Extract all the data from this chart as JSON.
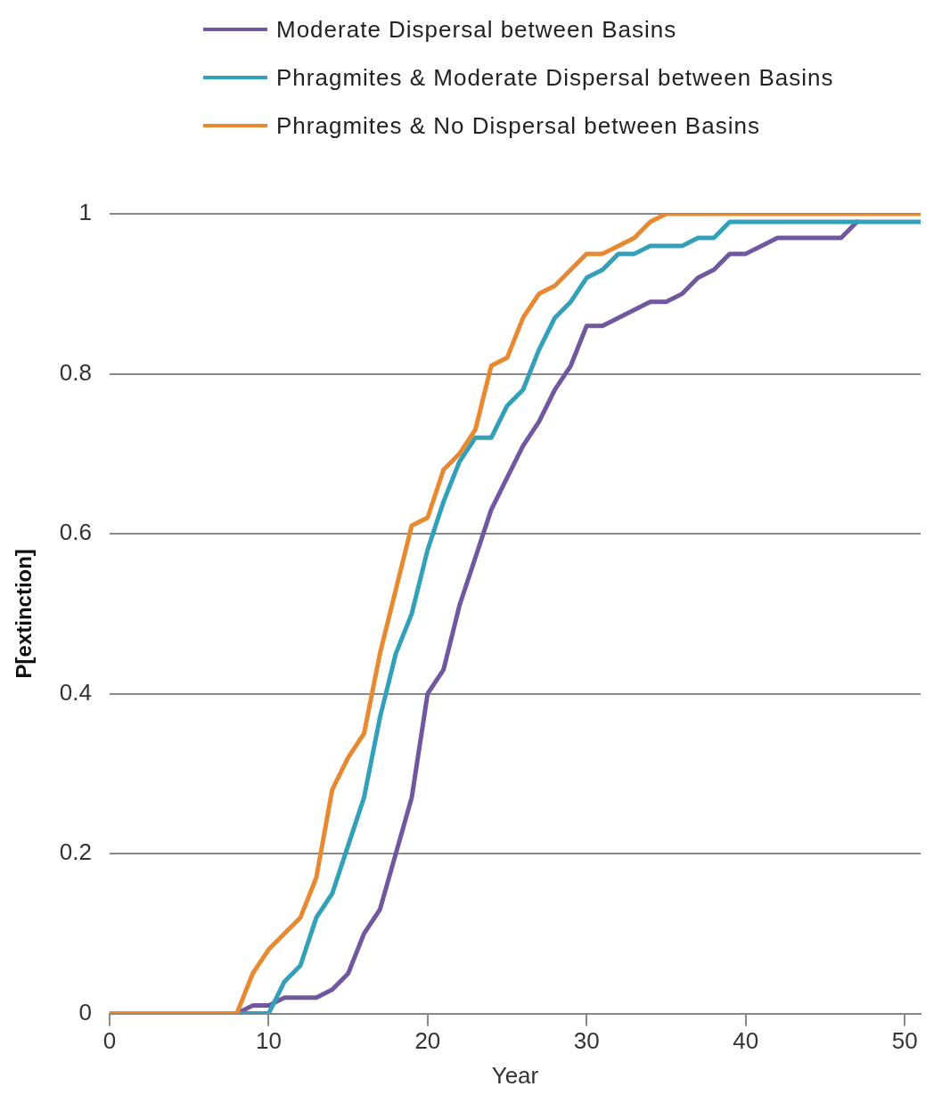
{
  "chart_data": {
    "type": "line",
    "xlabel": "Year",
    "ylabel": "P[extinction]",
    "x": [
      0,
      1,
      2,
      3,
      4,
      5,
      6,
      7,
      8,
      9,
      10,
      11,
      12,
      13,
      14,
      15,
      16,
      17,
      18,
      19,
      20,
      21,
      22,
      23,
      24,
      25,
      26,
      27,
      28,
      29,
      30,
      31,
      32,
      33,
      34,
      35,
      36,
      37,
      38,
      39,
      40,
      41,
      42,
      43,
      44,
      45,
      46,
      47,
      48,
      49,
      50,
      51
    ],
    "series": [
      {
        "name": "Moderate Dispersal between Basins",
        "color": "#7057a0",
        "values": [
          null,
          null,
          null,
          null,
          null,
          null,
          null,
          null,
          0,
          0.01,
          0.01,
          0.02,
          0.02,
          0.02,
          0.03,
          0.05,
          0.1,
          0.13,
          0.2,
          0.27,
          0.4,
          0.43,
          0.51,
          0.57,
          0.63,
          0.67,
          0.71,
          0.74,
          0.78,
          0.81,
          0.86,
          0.86,
          0.87,
          0.88,
          0.89,
          0.89,
          0.9,
          0.92,
          0.93,
          0.95,
          0.95,
          0.96,
          0.97,
          0.97,
          0.97,
          0.97,
          0.97,
          0.99,
          null,
          null,
          null,
          null
        ]
      },
      {
        "name": "Phragmites & Moderate Dispersal between Basins",
        "color": "#31a0b8",
        "values": [
          null,
          null,
          null,
          null,
          null,
          null,
          null,
          null,
          0,
          0,
          0,
          0.04,
          0.06,
          0.12,
          0.15,
          0.21,
          0.27,
          0.37,
          0.45,
          0.5,
          0.58,
          0.64,
          0.69,
          0.72,
          0.72,
          0.76,
          0.78,
          0.83,
          0.87,
          0.89,
          0.92,
          0.93,
          0.95,
          0.95,
          0.96,
          0.96,
          0.96,
          0.97,
          0.97,
          0.99,
          0.99,
          0.99,
          0.99,
          0.99,
          0.99,
          0.99,
          0.99,
          0.99,
          0.99,
          0.99,
          0.99,
          0.99
        ]
      },
      {
        "name": "Phragmites & No  Dispersal between Basins",
        "color": "#e8892f",
        "values": [
          0,
          0,
          0,
          0,
          0,
          0,
          0,
          0,
          0,
          0.05,
          0.08,
          0.1,
          0.12,
          0.17,
          0.28,
          0.32,
          0.35,
          0.45,
          0.53,
          0.61,
          0.62,
          0.68,
          0.7,
          0.73,
          0.81,
          0.82,
          0.87,
          0.9,
          0.91,
          0.93,
          0.95,
          0.95,
          0.96,
          0.97,
          0.99,
          1,
          1,
          1,
          1,
          1,
          1,
          1,
          1,
          1,
          1,
          1,
          1,
          1,
          1,
          1,
          1,
          1
        ]
      }
    ],
    "xlim": [
      0,
      51
    ],
    "xticks": [
      0,
      10,
      20,
      30,
      40,
      50
    ],
    "ylim": [
      0,
      1
    ],
    "yticks": [
      0,
      0.2,
      0.4,
      0.6,
      0.8,
      1
    ],
    "grid": "y",
    "legend": "top",
    "marker": "none",
    "line_style": "solid"
  }
}
